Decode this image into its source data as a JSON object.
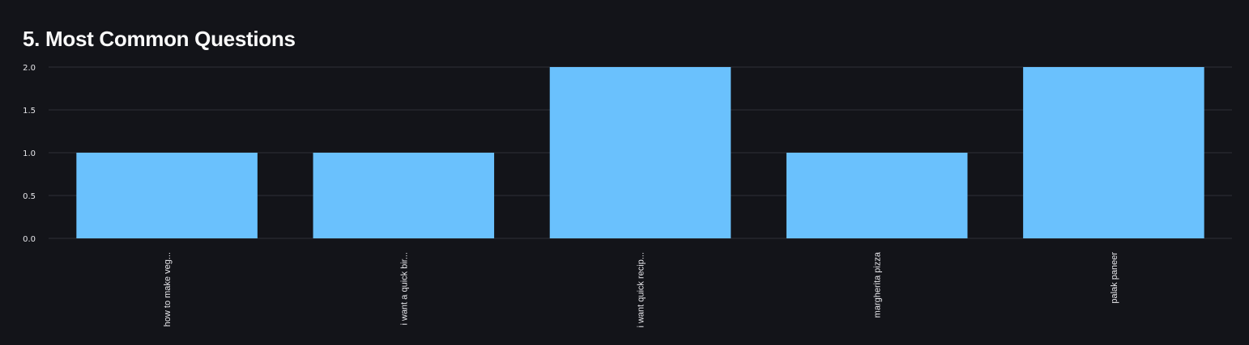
{
  "header": {
    "title": "5. Most Common Questions"
  },
  "colors": {
    "background": "#131419",
    "bar": "#6ac1fd",
    "grid": "#2f3038",
    "text": "#e6e6ea"
  },
  "chart_data": {
    "type": "bar",
    "title": "",
    "xlabel": "",
    "ylabel": "",
    "categories": [
      "how to make veg...",
      "i want a quick bir...",
      "i want quick recip...",
      "margherita pizza",
      "palak paneer"
    ],
    "values": [
      1,
      1,
      2,
      1,
      2
    ],
    "ylim": [
      0,
      2
    ],
    "yticks": [
      "0.0",
      "0.5",
      "1.0",
      "1.5",
      "2.0"
    ],
    "grid": true,
    "legend": "none"
  }
}
